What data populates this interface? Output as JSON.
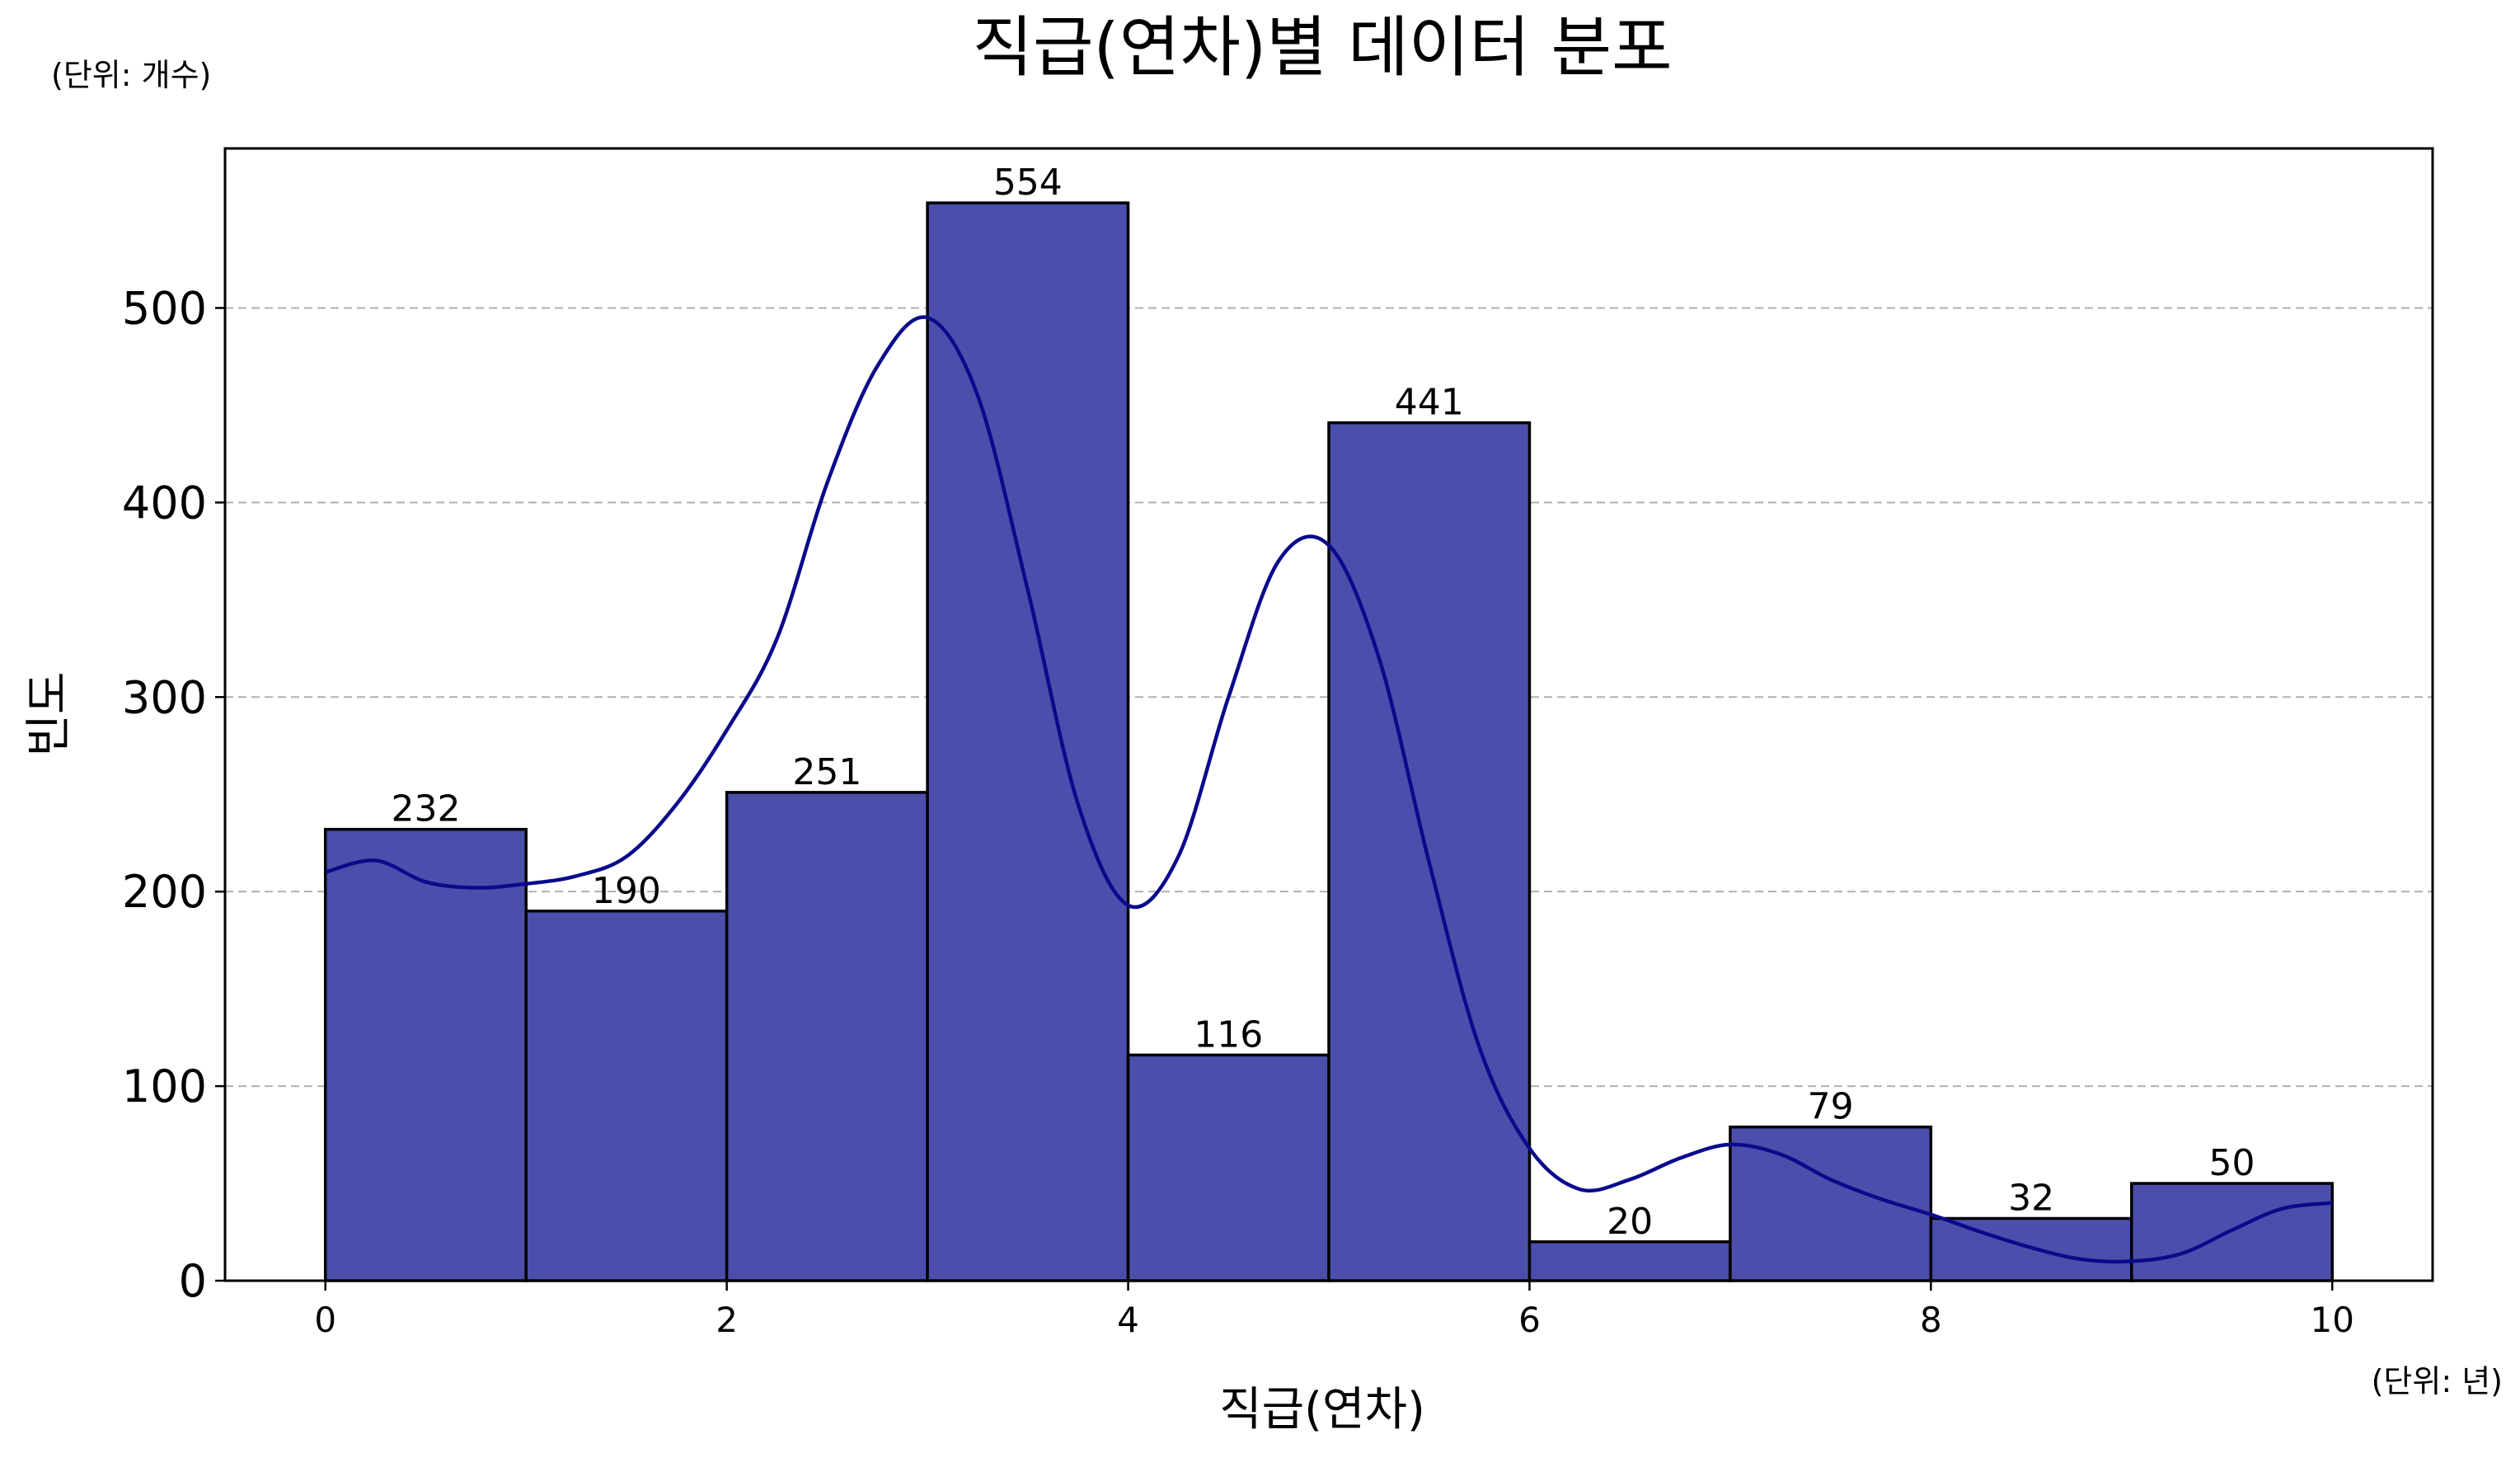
{
  "chart_data": {
    "type": "bar",
    "title": "직급(연차)별 데이터 분포",
    "xlabel": "직급(연차)",
    "ylabel": "빈도",
    "y_unit_note": "(단위: 개수)",
    "x_unit_note": "(단위: 년)",
    "bin_edges": [
      0,
      1,
      2,
      3,
      4,
      5,
      6,
      7,
      8,
      9,
      10
    ],
    "values": [
      232,
      190,
      251,
      554,
      116,
      441,
      20,
      79,
      32,
      50
    ],
    "value_labels": [
      "232",
      "190",
      "251",
      "554",
      "116",
      "441",
      "20",
      "79",
      "32",
      "50"
    ],
    "xlim": [
      -0.5,
      10.5
    ],
    "ylim": [
      0,
      582
    ],
    "xticks": [
      0,
      2,
      4,
      6,
      8,
      10
    ],
    "xtick_labels": [
      "0",
      "2",
      "4",
      "6",
      "8",
      "10"
    ],
    "yticks": [
      0,
      100,
      200,
      300,
      400,
      500
    ],
    "ytick_labels": [
      "0",
      "100",
      "200",
      "300",
      "400",
      "500"
    ],
    "grid": "y-dashed",
    "kde_curve": {
      "x": [
        0,
        0.25,
        0.5,
        0.75,
        1,
        1.25,
        1.5,
        1.75,
        2,
        2.25,
        2.5,
        2.75,
        3,
        3.25,
        3.5,
        3.75,
        4,
        4.25,
        4.5,
        4.75,
        5,
        5.25,
        5.5,
        5.75,
        6,
        6.25,
        6.5,
        6.75,
        7,
        7.25,
        7.5,
        7.75,
        8,
        8.25,
        8.5,
        8.75,
        9,
        9.25,
        9.5,
        9.75,
        10
      ],
      "y": [
        210,
        216,
        205,
        202,
        204,
        208,
        218,
        245,
        283,
        330,
        410,
        470,
        495,
        455,
        355,
        245,
        193,
        218,
        300,
        370,
        378,
        320,
        215,
        120,
        68,
        47,
        52,
        63,
        70,
        65,
        52,
        42,
        34,
        25,
        17,
        11,
        10,
        14,
        26,
        37,
        40
      ]
    },
    "colors": {
      "bar_fill": "#4b4fab",
      "bar_edge": "#000000",
      "kde_line": "#0a0a8c",
      "grid": "#b0b0b0"
    }
  }
}
